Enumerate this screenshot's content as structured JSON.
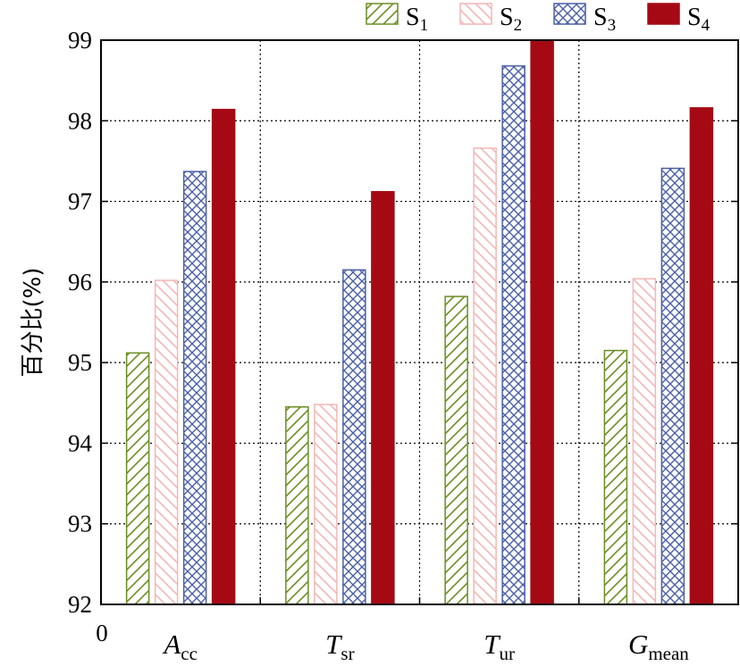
{
  "chart_data": {
    "type": "bar",
    "title": "",
    "ylabel": "百分比(%)",
    "xlabel": "",
    "origin_label": "0",
    "ylim": [
      92,
      99
    ],
    "yticks": [
      92,
      93,
      94,
      95,
      96,
      97,
      98,
      99
    ],
    "grid": true,
    "legend_position": "top-right",
    "categories": [
      {
        "main": "A",
        "sub": "cc"
      },
      {
        "main": "T",
        "sub": "sr"
      },
      {
        "main": "T",
        "sub": "ur"
      },
      {
        "main": "G",
        "sub": "mean"
      }
    ],
    "series": [
      {
        "name": {
          "main": "S",
          "sub": "1"
        },
        "color": "#6b8e23",
        "pattern": "diagonal-up",
        "values": [
          95.12,
          94.45,
          95.82,
          95.15
        ]
      },
      {
        "name": {
          "main": "S",
          "sub": "2"
        },
        "color": "#f4b6b6",
        "pattern": "diagonal-down",
        "values": [
          96.02,
          94.48,
          97.66,
          96.04
        ]
      },
      {
        "name": {
          "main": "S",
          "sub": "3"
        },
        "color": "#4a5fa8",
        "pattern": "crosshatch",
        "values": [
          97.37,
          96.15,
          98.68,
          97.41
        ]
      },
      {
        "name": {
          "main": "S",
          "sub": "4"
        },
        "color": "#a50a14",
        "pattern": "solid",
        "values": [
          98.14,
          97.12,
          99.0,
          98.16
        ]
      }
    ]
  }
}
